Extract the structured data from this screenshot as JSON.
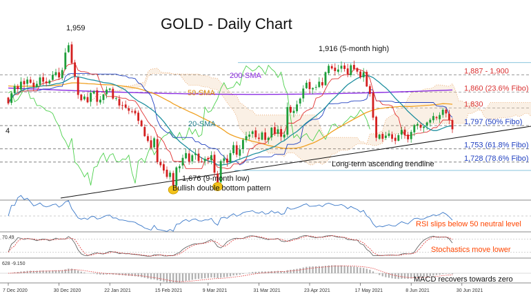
{
  "chart_data": {
    "type": "candlestick",
    "title": "GOLD - Daily Chart",
    "x_ticks": [
      "7 Dec 2020",
      "30 Dec 2020",
      "22 Jan 2021",
      "15 Feb 2021",
      "9 Mar 2021",
      "31 Mar 2021",
      "23 Apr 2021",
      "17 May 2021",
      "8 Jun 2021",
      "30 Jun 2021"
    ],
    "price_levels": [
      {
        "label": "1,887 - 1,900",
        "value": 1893,
        "color": "#d93030",
        "style": "dash"
      },
      {
        "label": "1,860 (23.6% Fibo)",
        "value": 1860,
        "color": "#d93030",
        "style": "dash"
      },
      {
        "label": "1,830",
        "value": 1830,
        "color": "#d93030",
        "style": "dash"
      },
      {
        "label": "1,797 (50% Fibo)",
        "value": 1797,
        "color": "#2040c0",
        "style": "dash"
      },
      {
        "label": "1,753 (61.8% Fibo)",
        "value": 1753,
        "color": "#2040c0",
        "style": "dash"
      },
      {
        "label": "1,728 (78.6% Fibo)",
        "value": 1728,
        "color": "#2040c0",
        "style": "dash"
      }
    ],
    "annotations": {
      "high": "1,959",
      "high_5m": "1,916 (5-month high)",
      "low_9m": "1,676 (9-month low)",
      "pattern": "Bullish double bottom pattern",
      "trendline": "Long-term ascending trendline",
      "sma200": "200-SMA",
      "sma50": "50-SMA",
      "sma20": "20-SMA",
      "edge_label": "4"
    },
    "indicators": {
      "rsi": {
        "comment": "RSI slips below 50 neutral level"
      },
      "stoch": {
        "comment": "Stochastics move lower",
        "value_label": "70.49"
      },
      "macd": {
        "comment": "MACD recovers towards zero",
        "value_label": "628 -9.150"
      }
    },
    "closes": [
      1839,
      1858,
      1872,
      1866,
      1880,
      1875,
      1884,
      1878,
      1870,
      1876,
      1888,
      1880,
      1877,
      1882,
      1893,
      1898,
      1888,
      1902,
      1935,
      1949,
      1915,
      1890,
      1855,
      1845,
      1852,
      1841,
      1859,
      1862,
      1842,
      1846,
      1856,
      1865,
      1867,
      1848,
      1849,
      1835,
      1835,
      1831,
      1825,
      1824,
      1820,
      1806,
      1796,
      1777,
      1768,
      1755,
      1773,
      1728,
      1722,
      1712,
      1700,
      1708,
      1684,
      1718,
      1720,
      1736,
      1745,
      1729,
      1741,
      1744,
      1730,
      1728,
      1734,
      1733,
      1741,
      1708,
      1688,
      1730,
      1735,
      1727,
      1745,
      1760,
      1742,
      1752,
      1770,
      1777,
      1780,
      1786,
      1775,
      1772,
      1784,
      1770,
      1774,
      1793,
      1781,
      1790,
      1776,
      1780,
      1832,
      1822,
      1825,
      1837,
      1848,
      1867,
      1878,
      1866,
      1868,
      1870,
      1880,
      1873,
      1898,
      1910,
      1905,
      1900,
      1903,
      1910,
      1904,
      1894,
      1911,
      1904,
      1899,
      1888,
      1898,
      1871,
      1857,
      1812,
      1774,
      1780,
      1772,
      1778,
      1782,
      1772,
      1768,
      1779,
      1789,
      1779,
      1771,
      1785,
      1798,
      1800,
      1793,
      1795,
      1803,
      1808,
      1815,
      1811,
      1817,
      1827,
      1820,
      1808,
      1790
    ]
  }
}
